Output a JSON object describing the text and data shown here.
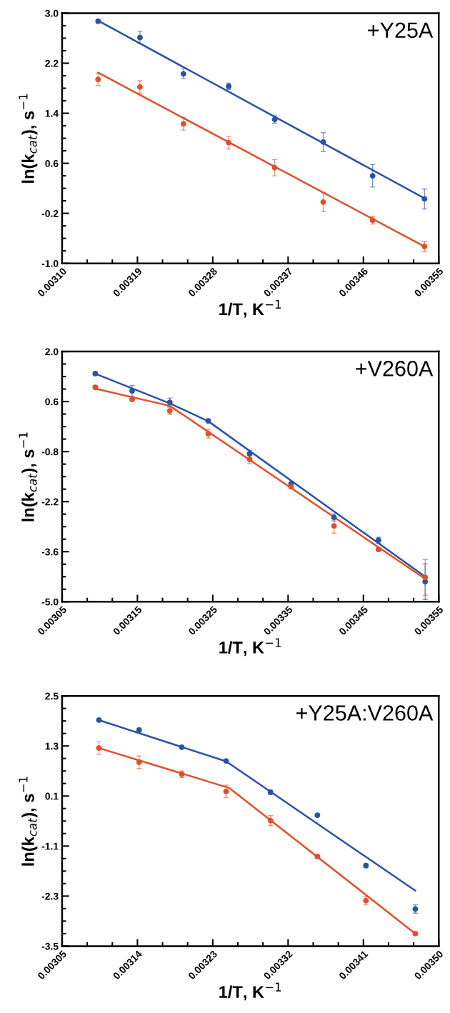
{
  "chart_data": [
    {
      "type": "scatter",
      "xlabel": "1/T, K$^{−1}$",
      "ylabel": "ln(k$_{cat}$), s$^{−1}$",
      "annotations": [
        "+Y25A"
      ],
      "grid": false,
      "legend": false,
      "xlim": [
        0.0031,
        0.00355
      ],
      "xticks": [
        {
          "value": 0.0031,
          "label": "0.00310"
        },
        {
          "value": 0.00319,
          "label": "0.00319"
        },
        {
          "value": 0.00328,
          "label": "0.00328"
        },
        {
          "value": 0.00337,
          "label": "0.00337"
        },
        {
          "value": 0.00346,
          "label": "0.00346"
        },
        {
          "value": 0.00355,
          "label": "0.00355"
        }
      ],
      "ylim": [
        -1.0,
        3.0
      ],
      "yticks": [
        {
          "value": -1.0,
          "label": "-1.0"
        },
        -0.2,
        0.6,
        1.4,
        2.2,
        {
          "value": 3.0,
          "label": "3.0"
        }
      ],
      "series": [
        {
          "marker": "circle",
          "color": "#2a52a8",
          "x": [
            0.003143,
            0.003193,
            0.003245,
            0.003299,
            0.003354,
            0.003412,
            0.003471,
            0.003533
          ],
          "values": [
            2.87,
            2.61,
            2.03,
            1.83,
            1.3,
            0.94,
            0.4,
            0.03
          ],
          "errors": [
            0.03,
            0.1,
            0.08,
            0.05,
            0.06,
            0.15,
            0.18,
            0.16
          ]
        },
        {
          "marker": "circle",
          "color": "#e0502a",
          "x": [
            0.003143,
            0.003193,
            0.003245,
            0.003299,
            0.003354,
            0.003412,
            0.003471,
            0.003533
          ],
          "values": [
            1.94,
            1.82,
            1.23,
            0.93,
            0.53,
            -0.02,
            -0.31,
            -0.73
          ],
          "errors": [
            0.1,
            0.1,
            0.1,
            0.1,
            0.13,
            0.15,
            0.06,
            0.08
          ]
        },
        {
          "type": "line",
          "marker": "none",
          "color": "#2a52a8",
          "x": [
            0.003143,
            0.003533
          ],
          "values": [
            2.88,
            0.04
          ]
        },
        {
          "type": "line",
          "marker": "none",
          "color": "#e0502a",
          "x": [
            0.003143,
            0.003533
          ],
          "values": [
            2.05,
            -0.73
          ]
        }
      ]
    },
    {
      "type": "scatter",
      "xlabel": "1/T, K$^{−1}$",
      "ylabel": "ln(k$_{cat}$), s$^{−1}$",
      "annotations": [
        "+V260A"
      ],
      "grid": false,
      "legend": false,
      "xlim": [
        0.00305,
        0.00355
      ],
      "xticks": [
        {
          "value": 0.00305,
          "label": "0.00305"
        },
        {
          "value": 0.00315,
          "label": "0.00315"
        },
        {
          "value": 0.00325,
          "label": "0.00325"
        },
        {
          "value": 0.00335,
          "label": "0.00335"
        },
        {
          "value": 0.00345,
          "label": "0.00345"
        },
        {
          "value": 0.00355,
          "label": "0.00355"
        }
      ],
      "ylim": [
        -5.0,
        2.0
      ],
      "yticks": [
        {
          "value": -5.0,
          "label": "-5.0"
        },
        -3.6,
        -2.2,
        -0.8,
        0.6,
        {
          "value": 2.0,
          "label": "2.0"
        }
      ],
      "series": [
        {
          "marker": "circle",
          "color": "#2a52a8",
          "x": [
            0.003094,
            0.003143,
            0.003193,
            0.003244,
            0.003299,
            0.003354,
            0.003411,
            0.00347,
            0.003532
          ],
          "values": [
            1.38,
            0.9,
            0.58,
            0.06,
            -0.86,
            -1.7,
            -2.64,
            -3.28,
            -4.44
          ],
          "errors": [
            0.05,
            0.15,
            0.12,
            0.05,
            0.1,
            0.05,
            0.1,
            0.08,
            0.5
          ]
        },
        {
          "marker": "circle",
          "color": "#e0502a",
          "x": [
            0.003094,
            0.003143,
            0.003193,
            0.003244,
            0.003299,
            0.003354,
            0.003411,
            0.00347,
            0.003532
          ],
          "values": [
            1.0,
            0.66,
            0.34,
            -0.3,
            -1.02,
            -1.78,
            -2.88,
            -3.54,
            -4.32
          ],
          "errors": [
            0.05,
            0.03,
            0.1,
            0.12,
            0.12,
            0.05,
            0.2,
            0.04,
            0.5
          ]
        },
        {
          "type": "line",
          "marker": "none",
          "color": "#2a52a8",
          "x": [
            0.003094,
            0.003193,
            0.003244,
            0.003532
          ],
          "values": [
            1.38,
            0.55,
            0.05,
            -4.3
          ]
        },
        {
          "type": "line",
          "marker": "none",
          "color": "#e0502a",
          "x": [
            0.003094,
            0.003193,
            0.003532
          ],
          "values": [
            0.96,
            0.48,
            -4.36
          ]
        }
      ]
    },
    {
      "type": "scatter",
      "xlabel": "1/T, K$^{−1}$",
      "ylabel": "ln(k$_{cat}$), s$^{−1}$",
      "annotations": [
        "+Y25A:V260A"
      ],
      "grid": false,
      "legend": false,
      "xlim": [
        0.00305,
        0.0035
      ],
      "xticks": [
        {
          "value": 0.00305,
          "label": "0.00305"
        },
        {
          "value": 0.00314,
          "label": "0.00314"
        },
        {
          "value": 0.00323,
          "label": "0.00323"
        },
        {
          "value": 0.00332,
          "label": "0.00332"
        },
        {
          "value": 0.00341,
          "label": "0.00341"
        },
        {
          "value": 0.0035,
          "label": "0.00350"
        }
      ],
      "ylim": [
        -3.5,
        2.5
      ],
      "yticks": [
        -3.5,
        -2.3,
        -1.1,
        0.1,
        1.3,
        2.5
      ],
      "series": [
        {
          "marker": "circle",
          "color": "#2a52a8",
          "x": [
            0.003094,
            0.003142,
            0.003193,
            0.003246,
            0.003299,
            0.003355,
            0.003413,
            0.003472
          ],
          "values": [
            1.92,
            1.68,
            1.27,
            0.94,
            0.19,
            -0.36,
            -1.57,
            -2.61
          ],
          "errors": [
            0.03,
            0.05,
            0.03,
            0.03,
            0.05,
            0.03,
            0.05,
            0.1
          ]
        },
        {
          "marker": "circle",
          "color": "#e0502a",
          "x": [
            0.003094,
            0.003142,
            0.003193,
            0.003246,
            0.003299,
            0.003355,
            0.003413,
            0.003472
          ],
          "values": [
            1.25,
            0.91,
            0.62,
            0.21,
            -0.49,
            -1.35,
            -2.41,
            -3.2
          ],
          "errors": [
            0.15,
            0.15,
            0.08,
            0.15,
            0.12,
            0.04,
            0.1,
            0.03
          ]
        },
        {
          "type": "line",
          "marker": "none",
          "color": "#2a52a8",
          "x": [
            0.003094,
            0.003246,
            0.003472
          ],
          "values": [
            1.92,
            0.93,
            -2.17
          ]
        },
        {
          "type": "line",
          "marker": "none",
          "color": "#e0502a",
          "x": [
            0.003094,
            0.00325,
            0.003472
          ],
          "values": [
            1.25,
            0.29,
            -3.2
          ]
        }
      ]
    }
  ]
}
